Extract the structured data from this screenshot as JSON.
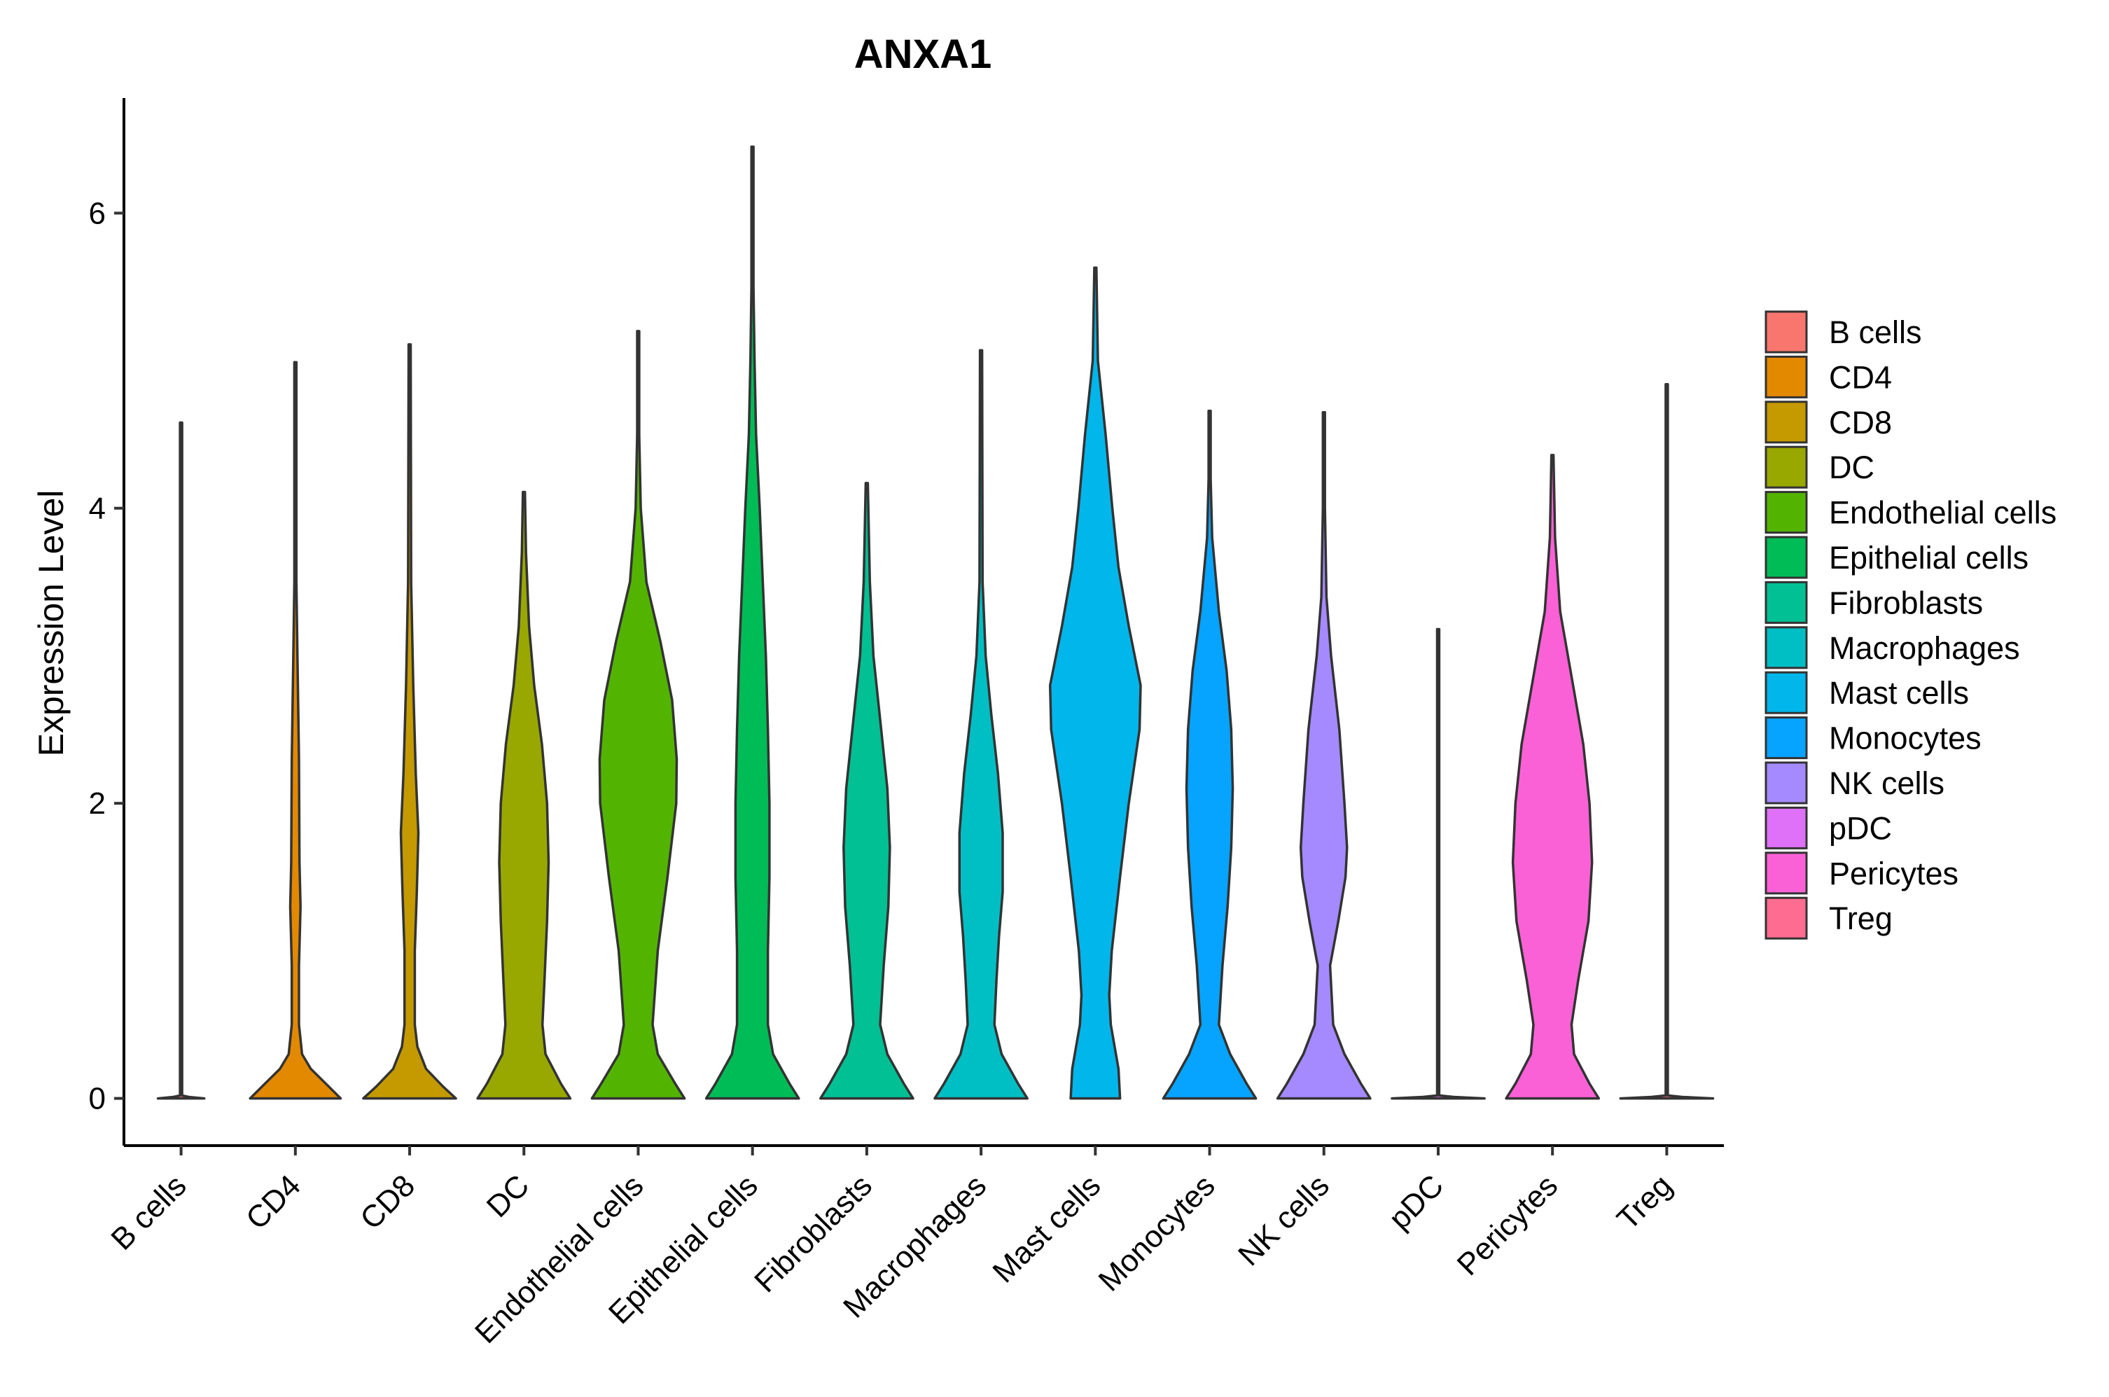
{
  "chart_data": {
    "type": "violin",
    "title": "ANXA1",
    "xlabel": "",
    "ylabel": "Expression Level",
    "ylim": [
      -0.32,
      6.78
    ],
    "yticks": [
      0,
      2,
      4,
      6
    ],
    "legend_position": "right",
    "grid": false,
    "categories": [
      "B cells",
      "CD4",
      "CD8",
      "DC",
      "Endothelial cells",
      "Epithelial cells",
      "Fibroblasts",
      "Macrophages",
      "Mast cells",
      "Monocytes",
      "NK cells",
      "pDC",
      "Pericytes",
      "Treg"
    ],
    "series": [
      {
        "name": "B cells",
        "color": "#F8766D",
        "max": 4.58,
        "profile": [
          [
            0,
            0.45
          ],
          [
            0.01,
            0.15
          ],
          [
            0.02,
            0.02
          ],
          [
            4.58,
            0.02
          ]
        ]
      },
      {
        "name": "CD4",
        "color": "#E38900",
        "max": 4.99,
        "profile": [
          [
            0,
            0.88
          ],
          [
            0.08,
            0.65
          ],
          [
            0.2,
            0.3
          ],
          [
            0.3,
            0.13
          ],
          [
            0.5,
            0.07
          ],
          [
            0.9,
            0.07
          ],
          [
            1.3,
            0.1
          ],
          [
            1.6,
            0.08
          ],
          [
            2.3,
            0.07
          ],
          [
            3.0,
            0.04
          ],
          [
            3.5,
            0.02
          ],
          [
            4.99,
            0.02
          ]
        ]
      },
      {
        "name": "CD8",
        "color": "#C49A00",
        "max": 5.11,
        "profile": [
          [
            0,
            0.9
          ],
          [
            0.08,
            0.65
          ],
          [
            0.2,
            0.32
          ],
          [
            0.35,
            0.15
          ],
          [
            0.5,
            0.1
          ],
          [
            1.0,
            0.1
          ],
          [
            1.4,
            0.14
          ],
          [
            1.8,
            0.17
          ],
          [
            2.2,
            0.12
          ],
          [
            2.8,
            0.07
          ],
          [
            3.5,
            0.03
          ],
          [
            5.11,
            0.02
          ]
        ]
      },
      {
        "name": "DC",
        "color": "#99A800",
        "max": 4.11,
        "profile": [
          [
            0,
            0.9
          ],
          [
            0.1,
            0.72
          ],
          [
            0.3,
            0.42
          ],
          [
            0.5,
            0.36
          ],
          [
            0.8,
            0.4
          ],
          [
            1.2,
            0.45
          ],
          [
            1.6,
            0.48
          ],
          [
            2.0,
            0.45
          ],
          [
            2.4,
            0.35
          ],
          [
            2.8,
            0.2
          ],
          [
            3.2,
            0.1
          ],
          [
            3.7,
            0.04
          ],
          [
            4.11,
            0.02
          ]
        ]
      },
      {
        "name": "Endothelial cells",
        "color": "#53B400",
        "max": 5.2,
        "profile": [
          [
            0,
            0.9
          ],
          [
            0.1,
            0.72
          ],
          [
            0.3,
            0.38
          ],
          [
            0.5,
            0.28
          ],
          [
            1.0,
            0.38
          ],
          [
            1.5,
            0.57
          ],
          [
            2.0,
            0.74
          ],
          [
            2.3,
            0.75
          ],
          [
            2.7,
            0.66
          ],
          [
            3.1,
            0.43
          ],
          [
            3.5,
            0.16
          ],
          [
            4.0,
            0.05
          ],
          [
            4.5,
            0.02
          ],
          [
            5.2,
            0.02
          ]
        ]
      },
      {
        "name": "Epithelial cells",
        "color": "#00BC56",
        "max": 6.45,
        "profile": [
          [
            0,
            0.9
          ],
          [
            0.1,
            0.72
          ],
          [
            0.3,
            0.4
          ],
          [
            0.5,
            0.3
          ],
          [
            1.0,
            0.3
          ],
          [
            1.5,
            0.33
          ],
          [
            2.0,
            0.33
          ],
          [
            2.5,
            0.3
          ],
          [
            3.0,
            0.26
          ],
          [
            3.5,
            0.2
          ],
          [
            4.0,
            0.14
          ],
          [
            4.5,
            0.07
          ],
          [
            5.0,
            0.04
          ],
          [
            5.5,
            0.02
          ],
          [
            6.45,
            0.02
          ]
        ]
      },
      {
        "name": "Fibroblasts",
        "color": "#00C094",
        "max": 4.17,
        "profile": [
          [
            0,
            0.9
          ],
          [
            0.1,
            0.72
          ],
          [
            0.3,
            0.4
          ],
          [
            0.5,
            0.26
          ],
          [
            0.9,
            0.33
          ],
          [
            1.3,
            0.42
          ],
          [
            1.7,
            0.45
          ],
          [
            2.1,
            0.4
          ],
          [
            2.5,
            0.28
          ],
          [
            3.0,
            0.13
          ],
          [
            3.5,
            0.06
          ],
          [
            4.17,
            0.02
          ]
        ]
      },
      {
        "name": "Macrophages",
        "color": "#00BFC4",
        "max": 5.07,
        "profile": [
          [
            0,
            0.9
          ],
          [
            0.1,
            0.72
          ],
          [
            0.3,
            0.4
          ],
          [
            0.5,
            0.26
          ],
          [
            0.8,
            0.3
          ],
          [
            1.1,
            0.35
          ],
          [
            1.4,
            0.42
          ],
          [
            1.8,
            0.42
          ],
          [
            2.2,
            0.33
          ],
          [
            2.6,
            0.2
          ],
          [
            3.0,
            0.09
          ],
          [
            3.5,
            0.03
          ],
          [
            5.07,
            0.02
          ]
        ]
      },
      {
        "name": "Mast cells",
        "color": "#00B6EB",
        "max": 5.63,
        "profile": [
          [
            0,
            0.48
          ],
          [
            0.2,
            0.45
          ],
          [
            0.5,
            0.3
          ],
          [
            0.7,
            0.27
          ],
          [
            1.0,
            0.32
          ],
          [
            1.5,
            0.48
          ],
          [
            2.0,
            0.65
          ],
          [
            2.5,
            0.86
          ],
          [
            2.8,
            0.88
          ],
          [
            3.2,
            0.65
          ],
          [
            3.6,
            0.45
          ],
          [
            4.0,
            0.33
          ],
          [
            4.5,
            0.2
          ],
          [
            5.0,
            0.05
          ],
          [
            5.63,
            0.02
          ]
        ]
      },
      {
        "name": "Monocytes",
        "color": "#06A4FF",
        "max": 4.66,
        "profile": [
          [
            0,
            0.9
          ],
          [
            0.1,
            0.72
          ],
          [
            0.3,
            0.4
          ],
          [
            0.5,
            0.18
          ],
          [
            0.9,
            0.25
          ],
          [
            1.3,
            0.35
          ],
          [
            1.7,
            0.42
          ],
          [
            2.1,
            0.45
          ],
          [
            2.5,
            0.42
          ],
          [
            2.9,
            0.33
          ],
          [
            3.3,
            0.18
          ],
          [
            3.8,
            0.05
          ],
          [
            4.2,
            0.02
          ],
          [
            4.66,
            0.02
          ]
        ]
      },
      {
        "name": "NK cells",
        "color": "#A58AFF",
        "max": 4.65,
        "profile": [
          [
            0,
            0.9
          ],
          [
            0.1,
            0.72
          ],
          [
            0.3,
            0.4
          ],
          [
            0.5,
            0.18
          ],
          [
            0.9,
            0.12
          ],
          [
            1.2,
            0.28
          ],
          [
            1.5,
            0.42
          ],
          [
            1.7,
            0.45
          ],
          [
            2.0,
            0.4
          ],
          [
            2.5,
            0.3
          ],
          [
            3.0,
            0.14
          ],
          [
            3.4,
            0.05
          ],
          [
            4.0,
            0.02
          ],
          [
            4.65,
            0.02
          ]
        ]
      },
      {
        "name": "pDC",
        "color": "#DF70F8",
        "max": 3.18,
        "profile": [
          [
            0,
            0.9
          ],
          [
            0.01,
            0.3
          ],
          [
            0.02,
            0.02
          ],
          [
            3.18,
            0.02
          ]
        ]
      },
      {
        "name": "Pericytes",
        "color": "#FB61D7",
        "max": 4.36,
        "profile": [
          [
            0,
            0.9
          ],
          [
            0.1,
            0.72
          ],
          [
            0.3,
            0.42
          ],
          [
            0.5,
            0.37
          ],
          [
            0.8,
            0.5
          ],
          [
            1.2,
            0.7
          ],
          [
            1.6,
            0.77
          ],
          [
            2.0,
            0.72
          ],
          [
            2.4,
            0.6
          ],
          [
            2.8,
            0.4
          ],
          [
            3.3,
            0.15
          ],
          [
            3.8,
            0.05
          ],
          [
            4.36,
            0.02
          ]
        ]
      },
      {
        "name": "Treg",
        "color": "#FF6C91",
        "max": 4.84,
        "profile": [
          [
            0,
            0.9
          ],
          [
            0.01,
            0.3
          ],
          [
            0.02,
            0.02
          ],
          [
            4.84,
            0.02
          ]
        ]
      }
    ]
  }
}
